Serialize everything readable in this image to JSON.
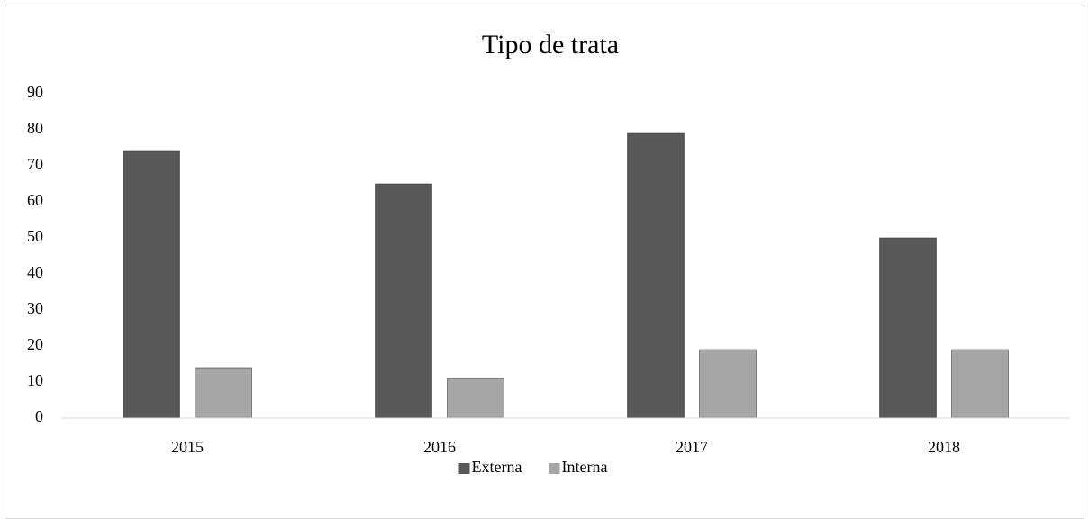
{
  "chart_data": {
    "type": "bar",
    "title": "Tipo de trata",
    "categories": [
      "2015",
      "2016",
      "2017",
      "2018"
    ],
    "series": [
      {
        "name": "Externa",
        "color": "#595959",
        "values": [
          74,
          65,
          79,
          50
        ]
      },
      {
        "name": "Interna",
        "color": "#a6a6a6",
        "values": [
          14,
          11,
          19,
          19
        ]
      }
    ],
    "ylim": [
      0,
      90
    ],
    "yticks": [
      0,
      10,
      20,
      30,
      40,
      50,
      60,
      70,
      80,
      90
    ],
    "grid": false,
    "legend": "bottom"
  }
}
